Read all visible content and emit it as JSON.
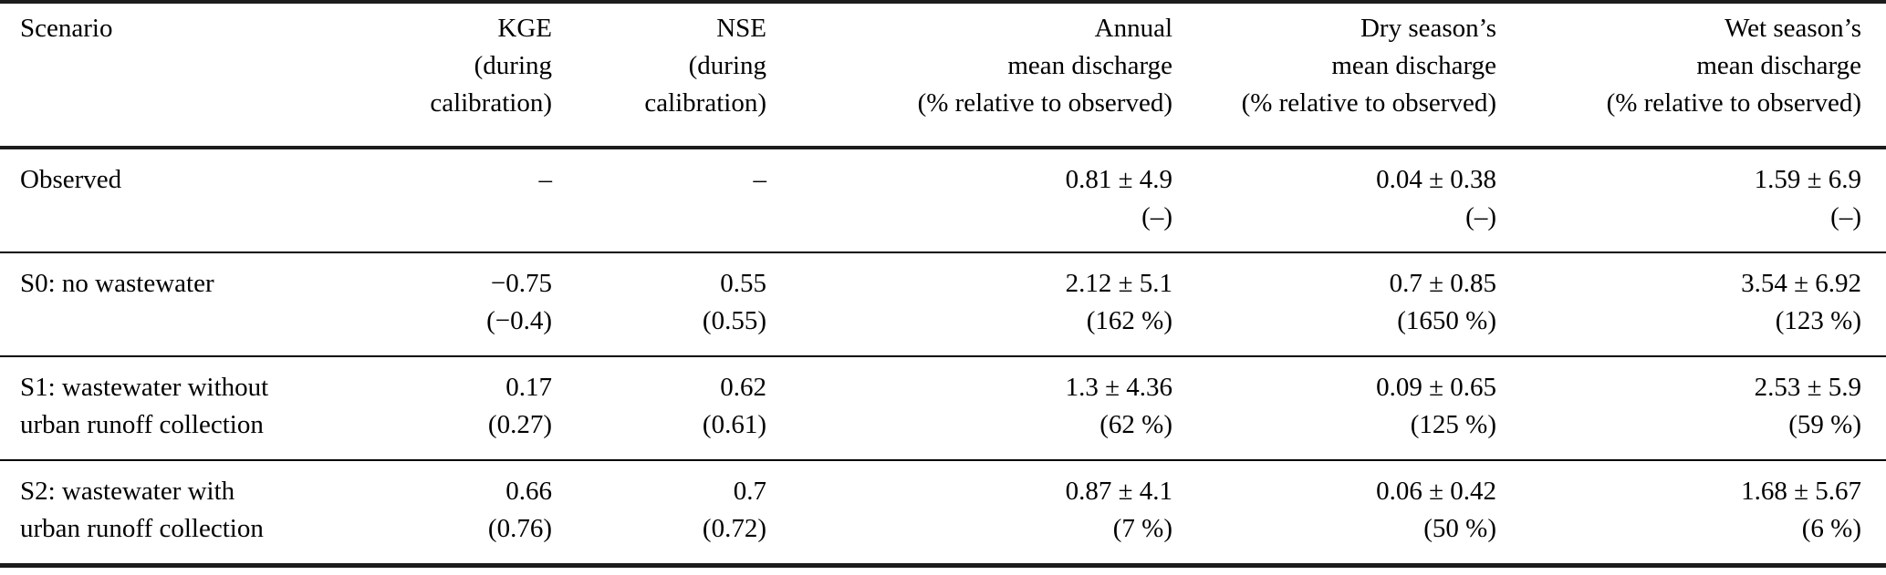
{
  "table": {
    "columns": [
      {
        "lines": [
          "Scenario",
          "",
          ""
        ]
      },
      {
        "lines": [
          "KGE",
          "(during",
          "calibration)"
        ]
      },
      {
        "lines": [
          "NSE",
          "(during",
          "calibration)"
        ]
      },
      {
        "lines": [
          "Annual",
          "mean discharge",
          "(% relative to observed)"
        ]
      },
      {
        "lines": [
          "Dry season’s",
          "mean discharge",
          "(% relative to observed)"
        ]
      },
      {
        "lines": [
          "Wet season’s",
          "mean discharge",
          "(% relative to observed)"
        ]
      }
    ],
    "rows": [
      {
        "scenario": [
          "Observed",
          ""
        ],
        "kge": {
          "value": "–",
          "paren": ""
        },
        "nse": {
          "value": "–",
          "paren": ""
        },
        "annual": {
          "value": "0.81 ± 4.9",
          "paren": "(–)"
        },
        "dry": {
          "value": "0.04 ± 0.38",
          "paren": "(–)"
        },
        "wet": {
          "value": "1.59 ± 6.9",
          "paren": "(–)"
        }
      },
      {
        "scenario": [
          "S0: no wastewater",
          ""
        ],
        "kge": {
          "value": "−0.75",
          "paren": "(−0.4)"
        },
        "nse": {
          "value": "0.55",
          "paren": "(0.55)"
        },
        "annual": {
          "value": "2.12 ± 5.1",
          "paren": "(162 %)"
        },
        "dry": {
          "value": "0.7 ± 0.85",
          "paren": "(1650 %)"
        },
        "wet": {
          "value": "3.54 ± 6.92",
          "paren": "(123 %)"
        }
      },
      {
        "scenario": [
          "S1: wastewater without",
          "urban runoff collection"
        ],
        "kge": {
          "value": "0.17",
          "paren": "(0.27)"
        },
        "nse": {
          "value": "0.62",
          "paren": "(0.61)"
        },
        "annual": {
          "value": "1.3 ± 4.36",
          "paren": "(62 %)"
        },
        "dry": {
          "value": "0.09 ± 0.65",
          "paren": "(125 %)"
        },
        "wet": {
          "value": "2.53 ± 5.9",
          "paren": "(59 %)"
        }
      },
      {
        "scenario": [
          "S2: wastewater with",
          "urban runoff collection"
        ],
        "kge": {
          "value": "0.66",
          "paren": "(0.76)"
        },
        "nse": {
          "value": "0.7",
          "paren": "(0.72)"
        },
        "annual": {
          "value": "0.87 ± 4.1",
          "paren": "(7 %)"
        },
        "dry": {
          "value": "0.06 ± 0.42",
          "paren": "(50 %)"
        },
        "wet": {
          "value": "1.68 ± 5.67",
          "paren": "(6 %)"
        }
      }
    ]
  }
}
